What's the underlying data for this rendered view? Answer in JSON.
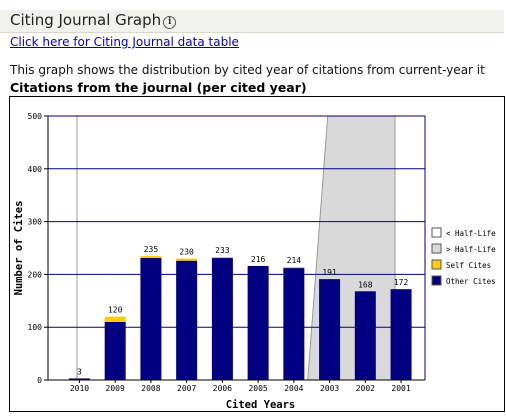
{
  "header": {
    "title": "Citing Journal Graph",
    "info_icon": "info-icon"
  },
  "link": {
    "text": "Click here for Citing Journal data table"
  },
  "description": "This graph shows the distribution by cited year of citations from current-year it",
  "chart_heading": "Citations from the journal (per cited year)",
  "colors": {
    "other_cites": "#000080",
    "self_cites": "#ffcc00",
    "after_half_life": "#d9d9d9",
    "before_half_life": "#ffffff"
  },
  "chart_data": {
    "type": "bar",
    "xlabel": "Cited Years",
    "ylabel": "Number of Cites",
    "ylim": [
      0,
      500
    ],
    "yticks": [
      "0",
      "100",
      "200",
      "300",
      "400",
      "500"
    ],
    "categories": [
      "2010",
      "2009",
      "2008",
      "2007",
      "2006",
      "2005",
      "2004",
      "2003",
      "2002",
      "2001"
    ],
    "totals": [
      "3",
      "120",
      "235",
      "230",
      "233",
      "216",
      "214",
      "191",
      "168",
      "172"
    ],
    "series": [
      {
        "name": "Other Cites",
        "values": [
          3,
          110,
          231,
          226,
          231,
          216,
          212,
          191,
          168,
          172
        ]
      },
      {
        "name": "Self Cites",
        "values": [
          0,
          10,
          4,
          4,
          2,
          0,
          2,
          0,
          0,
          0
        ]
      }
    ],
    "half_life_boundary": "between 2004 and 2003",
    "legend": {
      "placement": "right",
      "items": [
        "< Half-Life",
        "> Half-Life",
        "Self Cites",
        "Other Cites"
      ]
    }
  }
}
